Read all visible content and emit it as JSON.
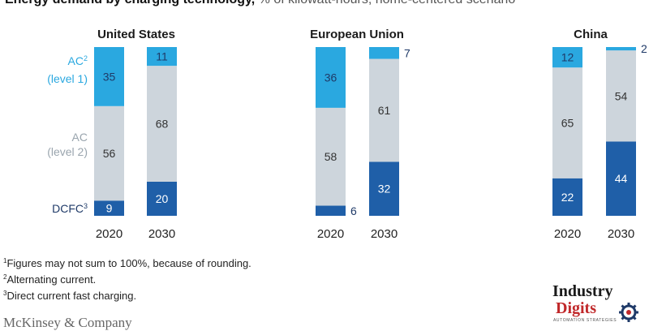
{
  "header": {
    "title": "Energy demand by charging technology,",
    "subtitle": " % of kilowatt-hours, home-centered scenario"
  },
  "legend": {
    "ac1": {
      "name": "AC",
      "sup": "2",
      "sub": "(level 1)"
    },
    "ac2": {
      "name": "AC",
      "sub": "(level 2)"
    },
    "dcfc": {
      "name": "DCFC",
      "sup": "3"
    }
  },
  "colors": {
    "ac1": "#2aa8e0",
    "ac2": "#cdd5dc",
    "dcfc": "#1f5fa8",
    "label_dark": "#1f3a68",
    "label_light": "#2aa8e0",
    "label_ac2": "#9aa5ae"
  },
  "chart_data": {
    "type": "bar",
    "stacked": true,
    "series_order": [
      "DCFC",
      "AC level 2",
      "AC level 1"
    ],
    "panels": [
      {
        "title": "United States",
        "categories": [
          "2020",
          "2030"
        ],
        "series": [
          {
            "name": "DCFC",
            "values": [
              9,
              20
            ]
          },
          {
            "name": "AC level 2",
            "values": [
              56,
              68
            ]
          },
          {
            "name": "AC level 1",
            "values": [
              35,
              11
            ]
          }
        ]
      },
      {
        "title": "European Union",
        "categories": [
          "2020",
          "2030"
        ],
        "series": [
          {
            "name": "DCFC",
            "values": [
              6,
              32
            ]
          },
          {
            "name": "AC level 2",
            "values": [
              58,
              61
            ]
          },
          {
            "name": "AC level 1",
            "values": [
              36,
              7
            ]
          }
        ]
      },
      {
        "title": "China",
        "categories": [
          "2020",
          "2030"
        ],
        "series": [
          {
            "name": "DCFC",
            "values": [
              22,
              44
            ]
          },
          {
            "name": "AC level 2",
            "values": [
              65,
              54
            ]
          },
          {
            "name": "AC level 1",
            "values": [
              12,
              2
            ]
          }
        ]
      }
    ],
    "ylim": [
      0,
      100
    ]
  },
  "footnotes": [
    {
      "sup": "1",
      "text": "Figures may not sum to 100%, because of rounding."
    },
    {
      "sup": "2",
      "text": "Alternating current."
    },
    {
      "sup": "3",
      "text": "Direct current fast charging."
    }
  ],
  "source": "McKinsey & Company",
  "logo": {
    "line1": "Industry",
    "line2": "Digits",
    "tagline": "AUTOMATION STRATEGIES"
  }
}
